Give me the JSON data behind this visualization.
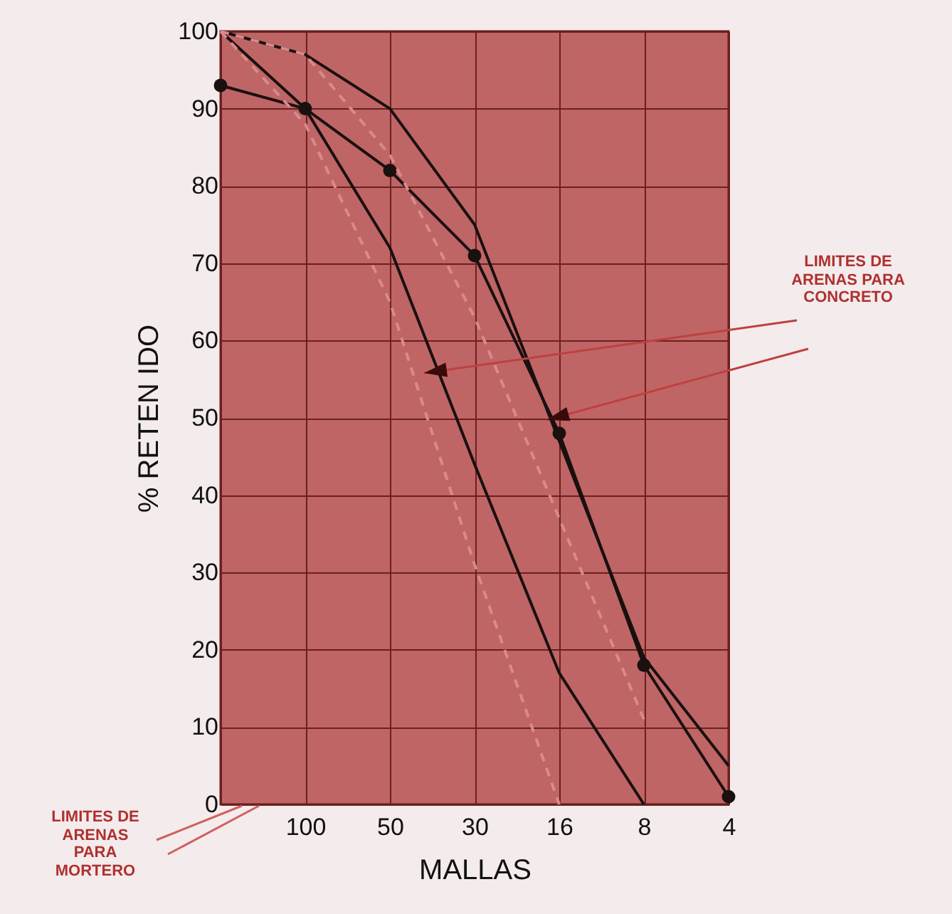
{
  "chart_data": {
    "type": "line",
    "xlabel": "MALLAS",
    "ylabel": "% RETEN IDO",
    "categories": [
      null,
      "100",
      "50",
      "30",
      "16",
      "8",
      "4"
    ],
    "ylim": [
      0,
      100
    ],
    "yticks": [
      0,
      10,
      20,
      30,
      40,
      50,
      60,
      70,
      80,
      90,
      100
    ],
    "grid": true,
    "series": [
      {
        "color": "#1a1010",
        "line_style": "solid",
        "marker": "none",
        "values": [
          100,
          90,
          72,
          44,
          17,
          0,
          null
        ]
      },
      {
        "color": "#1a1010",
        "line_style": "solid",
        "marker": "none",
        "values": [
          100,
          97,
          90,
          75,
          47,
          19,
          5
        ]
      },
      {
        "color": "#1a1010",
        "line_style": "solid",
        "marker": "circle",
        "values": [
          93,
          90,
          82,
          71,
          48,
          18,
          1
        ]
      },
      {
        "color": "#d98a8a",
        "line_style": "dashed",
        "marker": "none",
        "values": [
          100,
          88,
          65,
          31,
          0,
          null,
          null
        ]
      },
      {
        "color": "#d98a8a",
        "line_style": "dashed",
        "marker": "none",
        "values": [
          100,
          97,
          84,
          63,
          37,
          11,
          null
        ]
      }
    ],
    "annotations": [
      "LIMITES DE ARENAS PARA CONCRETO",
      "LIMITES DE ARENAS PARA MORTERO"
    ]
  }
}
